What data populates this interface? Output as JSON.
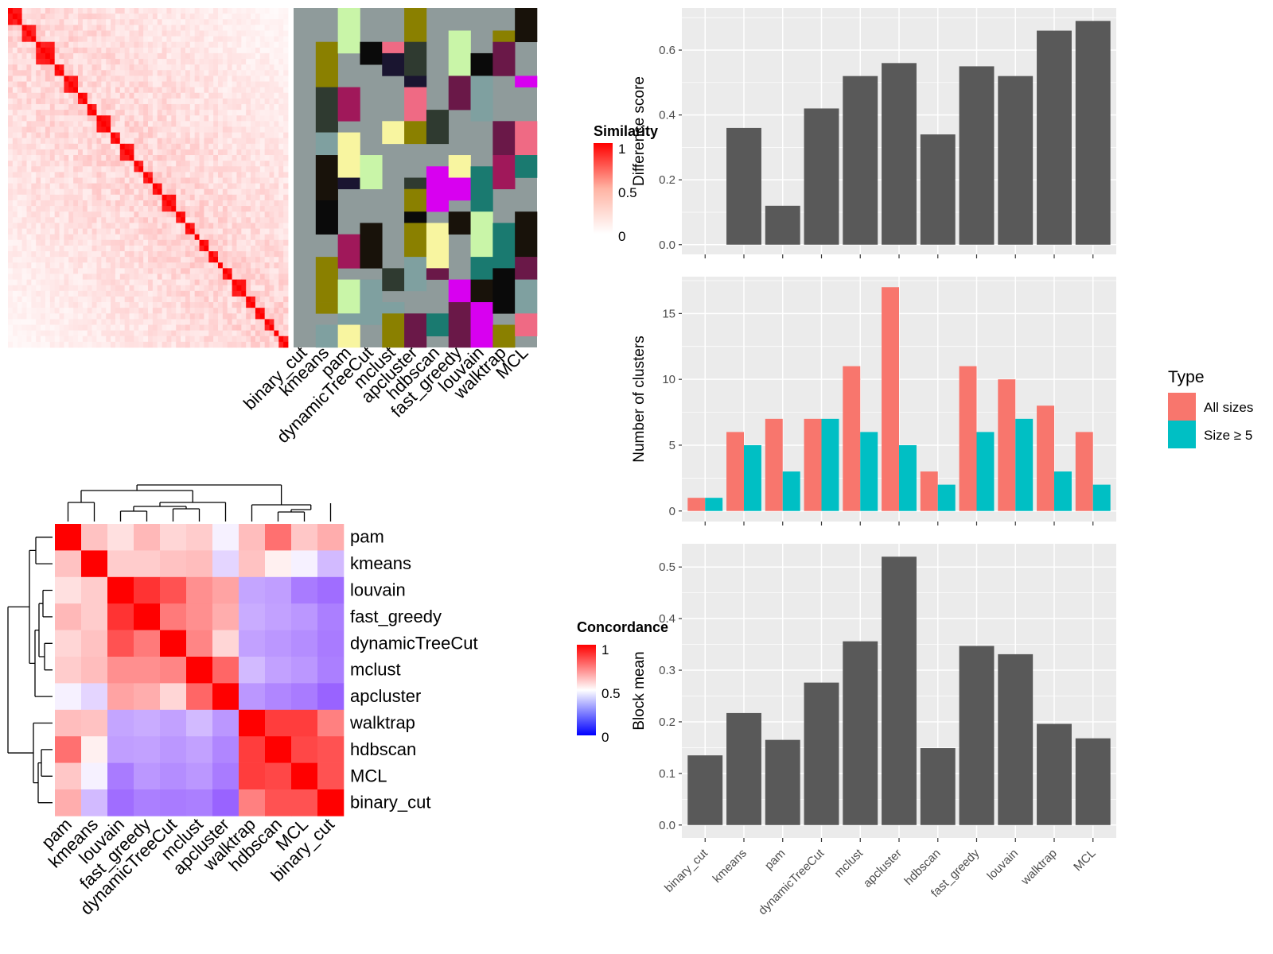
{
  "methods": [
    "binary_cut",
    "kmeans",
    "pam",
    "dynamicTreeCut",
    "mclust",
    "apcluster",
    "hdbscan",
    "fast_greedy",
    "louvain",
    "walktrap",
    "MCL"
  ],
  "colors": {
    "panel_bg": "#ebebeb",
    "grid": "#ffffff",
    "bar_dark": "#595959",
    "all_sizes": "#f8766d",
    "size5": "#00bfc4",
    "sim_high": "#ff0000",
    "sim_low": "#ffffff",
    "conc_high": "#ff0000",
    "conc_mid": "#ffffff",
    "conc_low": "#0000ff",
    "cluster_bg": "#8f9b9b"
  },
  "similarity_heatmap": {
    "legend_title": "Similarity",
    "legend_ticks": [
      "1",
      "0.5",
      "0"
    ]
  },
  "cluster_assignment": {
    "column_labels": [
      "binary_cut",
      "kmeans",
      "pam",
      "dynamicTreeCut",
      "mclust",
      "apcluster",
      "hdbscan",
      "fast_greedy",
      "louvain",
      "walktrap",
      "MCL"
    ]
  },
  "concordance_heatmap": {
    "legend_title": "Concordance",
    "legend_ticks": [
      "1",
      "0.5",
      "0"
    ],
    "row_order": [
      "pam",
      "kmeans",
      "louvain",
      "fast_greedy",
      "dynamicTreeCut",
      "mclust",
      "apcluster",
      "walktrap",
      "hdbscan",
      "MCL",
      "binary_cut"
    ],
    "col_order": [
      "pam",
      "kmeans",
      "louvain",
      "fast_greedy",
      "dynamicTreeCut",
      "mclust",
      "apcluster",
      "walktrap",
      "hdbscan",
      "MCL",
      "binary_cut"
    ],
    "matrix": [
      [
        1.0,
        0.62,
        0.56,
        0.64,
        0.58,
        0.6,
        0.46,
        0.63,
        0.78,
        0.61,
        0.66
      ],
      [
        0.62,
        1.0,
        0.6,
        0.6,
        0.62,
        0.63,
        0.38,
        0.62,
        0.53,
        0.46,
        0.3
      ],
      [
        0.56,
        0.6,
        1.0,
        0.9,
        0.84,
        0.72,
        0.68,
        0.24,
        0.22,
        0.12,
        0.08
      ],
      [
        0.64,
        0.6,
        0.9,
        1.0,
        0.76,
        0.72,
        0.66,
        0.26,
        0.23,
        0.2,
        0.13
      ],
      [
        0.58,
        0.62,
        0.84,
        0.76,
        1.0,
        0.74,
        0.58,
        0.23,
        0.2,
        0.17,
        0.12
      ],
      [
        0.6,
        0.63,
        0.72,
        0.72,
        0.74,
        1.0,
        0.8,
        0.3,
        0.23,
        0.2,
        0.13
      ],
      [
        0.46,
        0.38,
        0.68,
        0.66,
        0.58,
        0.8,
        1.0,
        0.2,
        0.15,
        0.12,
        0.05
      ],
      [
        0.63,
        0.62,
        0.24,
        0.26,
        0.23,
        0.3,
        0.2,
        1.0,
        0.88,
        0.88,
        0.75
      ],
      [
        0.78,
        0.53,
        0.22,
        0.23,
        0.2,
        0.23,
        0.15,
        0.88,
        1.0,
        0.86,
        0.84
      ],
      [
        0.61,
        0.46,
        0.12,
        0.2,
        0.17,
        0.2,
        0.12,
        0.88,
        0.86,
        1.0,
        0.84
      ],
      [
        0.66,
        0.3,
        0.08,
        0.13,
        0.12,
        0.13,
        0.05,
        0.75,
        0.84,
        0.84,
        1.0
      ]
    ]
  },
  "chart_data": [
    {
      "type": "bar",
      "ylabel": "Difference score",
      "categories": [
        "binary_cut",
        "kmeans",
        "pam",
        "dynamicTreeCut",
        "mclust",
        "apcluster",
        "hdbscan",
        "fast_greedy",
        "louvain",
        "walktrap",
        "MCL"
      ],
      "values": [
        0.0,
        0.36,
        0.12,
        0.42,
        0.52,
        0.56,
        0.34,
        0.55,
        0.52,
        0.66,
        0.69
      ],
      "ylim": [
        -0.03,
        0.73
      ],
      "yticks": [
        0.0,
        0.2,
        0.4,
        0.6
      ]
    },
    {
      "type": "bar",
      "ylabel": "Number of clusters",
      "categories": [
        "binary_cut",
        "kmeans",
        "pam",
        "dynamicTreeCut",
        "mclust",
        "apcluster",
        "hdbscan",
        "fast_greedy",
        "louvain",
        "walktrap",
        "MCL"
      ],
      "legend_title": "Type",
      "legend_position": "right",
      "series": [
        {
          "name": "All sizes",
          "values": [
            1,
            6,
            7,
            7,
            11,
            17,
            3,
            11,
            10,
            8,
            6
          ]
        },
        {
          "name": "Size ≥ 5",
          "values": [
            1,
            5,
            3,
            7,
            6,
            5,
            2,
            6,
            7,
            3,
            2
          ]
        }
      ],
      "ylim": [
        -0.8,
        17.8
      ],
      "yticks": [
        0,
        5,
        10,
        15
      ]
    },
    {
      "type": "bar",
      "ylabel": "Block mean",
      "categories": [
        "binary_cut",
        "kmeans",
        "pam",
        "dynamicTreeCut",
        "mclust",
        "apcluster",
        "hdbscan",
        "fast_greedy",
        "louvain",
        "walktrap",
        "MCL"
      ],
      "values": [
        0.135,
        0.217,
        0.165,
        0.276,
        0.356,
        0.52,
        0.149,
        0.347,
        0.331,
        0.196,
        0.168
      ],
      "ylim": [
        -0.025,
        0.545
      ],
      "yticks": [
        0.0,
        0.1,
        0.2,
        0.3,
        0.4,
        0.5
      ]
    }
  ]
}
